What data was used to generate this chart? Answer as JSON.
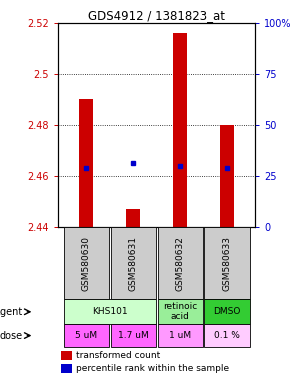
{
  "title": "GDS4912 / 1381823_at",
  "samples": [
    "GSM580630",
    "GSM580631",
    "GSM580632",
    "GSM580633"
  ],
  "bar_bottom": 2.44,
  "bar_tops": [
    2.49,
    2.447,
    2.516,
    2.48
  ],
  "percentile_values": [
    2.463,
    2.465,
    2.464,
    2.463
  ],
  "ylim": [
    2.44,
    2.52
  ],
  "yticks_left": [
    2.44,
    2.46,
    2.48,
    2.5,
    2.52
  ],
  "ytick_left_labels": [
    "2.44",
    "2.46",
    "2.48",
    "2.5",
    "2.52"
  ],
  "yticks_right_vals": [
    0,
    25,
    50,
    75,
    100
  ],
  "ytick_right_labels": [
    "0",
    "25",
    "50",
    "75",
    "100%"
  ],
  "bar_color": "#cc0000",
  "dot_color": "#0000cc",
  "agent_defs": [
    {
      "text": "KHS101",
      "cols": [
        0,
        1
      ],
      "color": "#ccffcc"
    },
    {
      "text": "retinoic\nacid",
      "cols": [
        2
      ],
      "color": "#99ee99"
    },
    {
      "text": "DMSO",
      "cols": [
        3
      ],
      "color": "#33cc33"
    }
  ],
  "dose_labels": [
    "5 uM",
    "1.7 uM",
    "1 uM",
    "0.1 %"
  ],
  "dose_colors": [
    "#ff66ff",
    "#ff66ff",
    "#ff99ff",
    "#ffccff"
  ],
  "sample_bg_color": "#cccccc",
  "gridline_vals": [
    2.46,
    2.48,
    2.5
  ]
}
